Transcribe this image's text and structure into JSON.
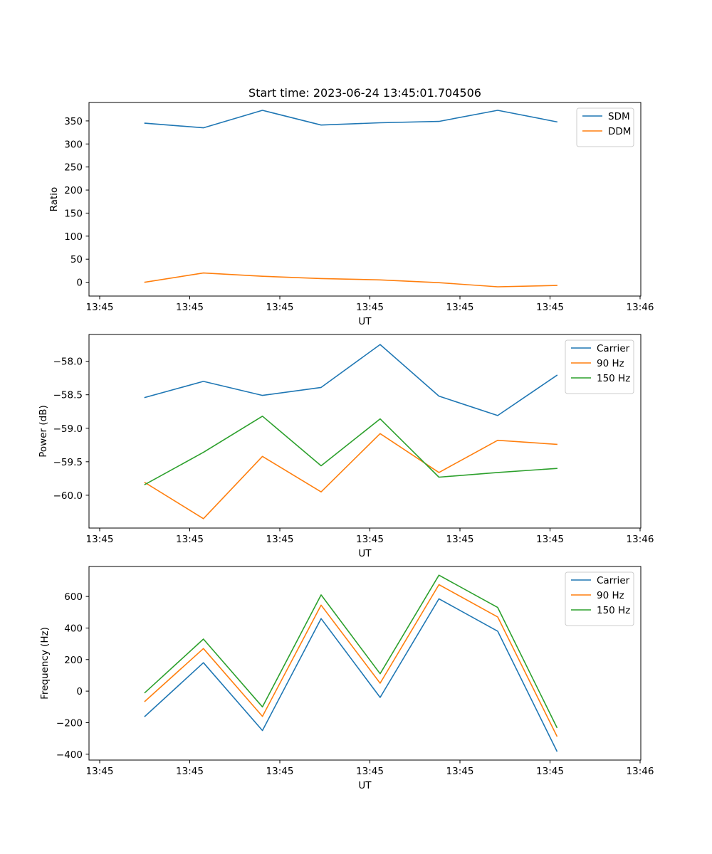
{
  "title": "Start time: 2023-06-24 13:45:01.704506",
  "colors": {
    "blue": "#1f77b4",
    "orange": "#ff7f0e",
    "green": "#2ca02c",
    "axes": "#000000"
  },
  "chart_data": [
    {
      "type": "line",
      "title": "Start time: 2023-06-24 13:45:01.704506",
      "xlabel": "UT",
      "ylabel": "Ratio",
      "x_tick_labels": [
        "13:45",
        "13:45",
        "13:45",
        "13:45",
        "13:45",
        "13:45",
        "13:46"
      ],
      "y_ticks": [
        0,
        50,
        100,
        150,
        200,
        250,
        300,
        350
      ],
      "ylim": [
        -30,
        390
      ],
      "legend_position": "upper right",
      "grid": false,
      "series": [
        {
          "name": "SDM",
          "color": "#1f77b4",
          "values": [
            345,
            335,
            373,
            341,
            346,
            349,
            373,
            348
          ]
        },
        {
          "name": "DDM",
          "color": "#ff7f0e",
          "values": [
            0,
            20,
            13,
            8,
            5,
            -1,
            -10,
            -7
          ]
        }
      ]
    },
    {
      "type": "line",
      "xlabel": "UT",
      "ylabel": "Power (dB)",
      "x_tick_labels": [
        "13:45",
        "13:45",
        "13:45",
        "13:45",
        "13:45",
        "13:45",
        "13:46"
      ],
      "y_ticks": [
        -60.0,
        -59.5,
        -59.0,
        -58.5,
        -58.0
      ],
      "y_tick_labels": [
        "−60.0",
        "−59.5",
        "−59.0",
        "−58.5",
        "−58.0"
      ],
      "ylim": [
        -60.49,
        -57.6
      ],
      "legend_position": "upper right",
      "grid": false,
      "series": [
        {
          "name": "Carrier",
          "color": "#1f77b4",
          "values": [
            -58.54,
            -58.3,
            -58.51,
            -58.39,
            -57.75,
            -58.52,
            -58.81,
            -58.21
          ]
        },
        {
          "name": "90 Hz",
          "color": "#ff7f0e",
          "values": [
            -59.81,
            -60.35,
            -59.42,
            -59.95,
            -59.08,
            -59.66,
            -59.18,
            -59.24
          ]
        },
        {
          "name": "150 Hz",
          "color": "#2ca02c",
          "values": [
            -59.84,
            -59.36,
            -58.82,
            -59.56,
            -58.86,
            -59.73,
            -59.66,
            -59.6
          ]
        }
      ]
    },
    {
      "type": "line",
      "xlabel": "UT",
      "ylabel": "Frequency (Hz)",
      "x_tick_labels": [
        "13:45",
        "13:45",
        "13:45",
        "13:45",
        "13:45",
        "13:45",
        "13:46"
      ],
      "y_ticks": [
        -400,
        -200,
        0,
        200,
        400,
        600
      ],
      "y_tick_labels": [
        "−400",
        "−200",
        "0",
        "200",
        "400",
        "600"
      ],
      "ylim": [
        -437,
        790
      ],
      "legend_position": "upper right",
      "grid": false,
      "series": [
        {
          "name": "Carrier",
          "color": "#1f77b4",
          "values": [
            -160,
            180,
            -250,
            460,
            -40,
            585,
            380,
            -380
          ]
        },
        {
          "name": "90 Hz",
          "color": "#ff7f0e",
          "values": [
            -65,
            270,
            -160,
            545,
            50,
            675,
            470,
            -285
          ]
        },
        {
          "name": "150 Hz",
          "color": "#2ca02c",
          "values": [
            -10,
            330,
            -100,
            610,
            110,
            735,
            530,
            -230
          ]
        }
      ]
    }
  ]
}
